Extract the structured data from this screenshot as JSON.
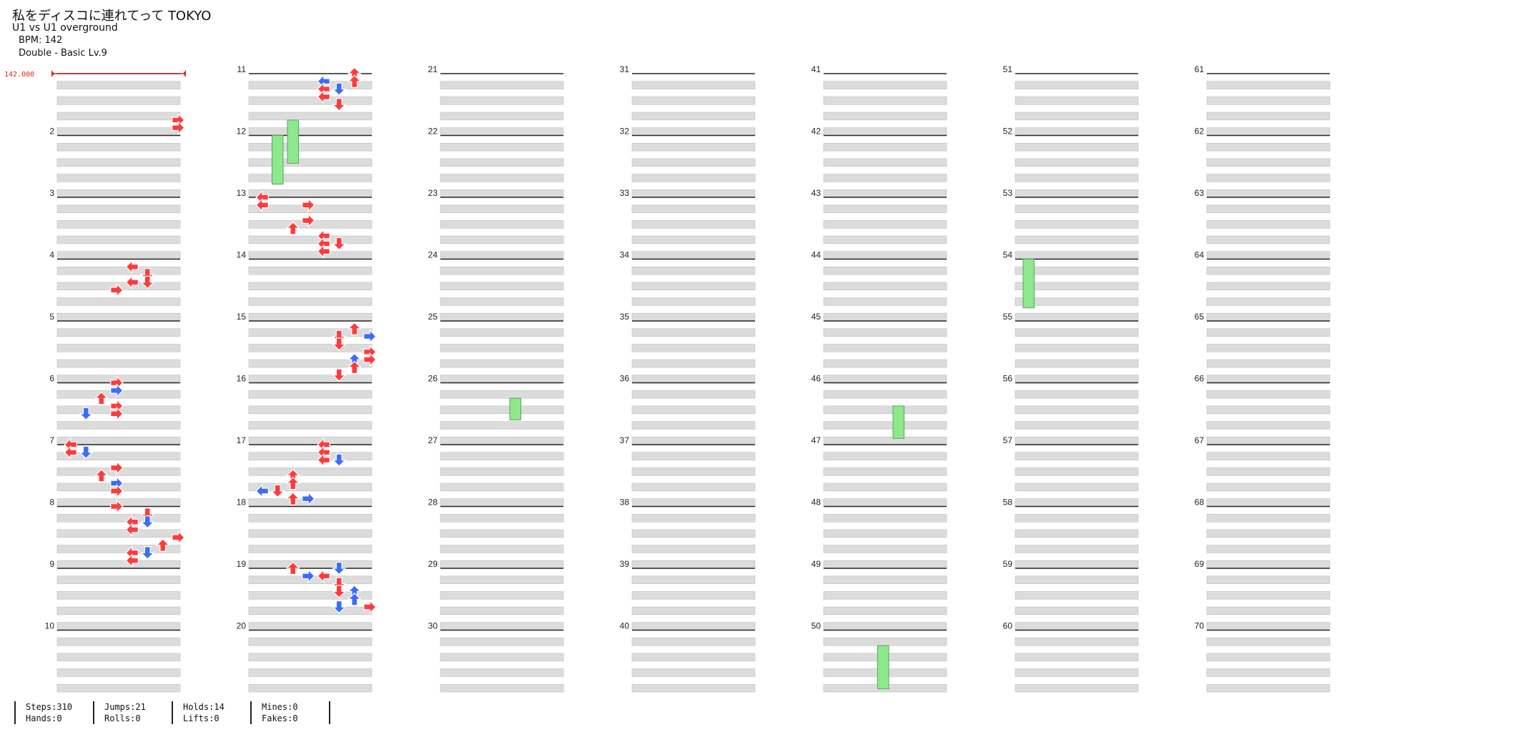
{
  "song": {
    "title": "私をディスコに連れてって TOKYO",
    "subtitle": "U1 vs U1 overground",
    "bpm_label": "BPM: 142",
    "difficulty_label": "Double - Basic Lv.9"
  },
  "bpm_marker": {
    "value_label": "142.000",
    "color": "#e02020"
  },
  "colors": {
    "red_arrow": "#ff3b3b",
    "blue_arrow": "#3b6bff",
    "hold": "#8ee88e",
    "band": "#dcdcdc",
    "measure_line": "#222222"
  },
  "measures": {
    "first": 1,
    "last": 70,
    "columns": 7,
    "per_column": 10,
    "labels": [
      "2",
      "3",
      "4",
      "5",
      "6",
      "7",
      "8",
      "9",
      "10",
      "11",
      "12",
      "13",
      "14",
      "15",
      "16",
      "17",
      "18",
      "19",
      "20",
      "21",
      "22",
      "23",
      "24",
      "25",
      "26",
      "27",
      "28",
      "29",
      "30",
      "31",
      "32",
      "33",
      "34",
      "35",
      "36",
      "37",
      "38",
      "39",
      "40",
      "41",
      "42",
      "43",
      "44",
      "45",
      "46",
      "47",
      "48",
      "49",
      "50",
      "51",
      "52",
      "53",
      "54",
      "55",
      "56",
      "57",
      "58",
      "59",
      "60",
      "61",
      "62",
      "63",
      "64",
      "65",
      "66",
      "67",
      "68",
      "69",
      "70"
    ]
  },
  "stats": {
    "steps": "Steps:310",
    "hands": "Hands:0",
    "jumps": "Jumps:21",
    "rolls": "Rolls:0",
    "holds": "Holds:14",
    "lifts": "Lifts:0",
    "mines": "Mines:0",
    "fakes": "Fakes:0"
  },
  "notes": {
    "lanes": [
      "L",
      "D",
      "U",
      "R",
      "L",
      "D",
      "U",
      "R"
    ],
    "description_rows": "per measure: list of [beat_row(0-7), lane(0-7), color r|b]",
    "data": {
      "1": [
        [
          6,
          7,
          "r"
        ],
        [
          7,
          7,
          "r"
        ]
      ],
      "4": [
        [
          1,
          4,
          "r"
        ],
        [
          2,
          5,
          "r"
        ],
        [
          3,
          4,
          "r"
        ],
        [
          3,
          5,
          "r"
        ],
        [
          4,
          3,
          "r"
        ]
      ],
      "6": [
        [
          0,
          3,
          "r"
        ],
        [
          1,
          3,
          "b"
        ],
        [
          2,
          2,
          "r"
        ],
        [
          2,
          2,
          "r"
        ],
        [
          3,
          3,
          "r"
        ],
        [
          4,
          1,
          "b"
        ],
        [
          4,
          3,
          "r"
        ]
      ],
      "7": [
        [
          0,
          0,
          "r"
        ],
        [
          1,
          1,
          "b"
        ],
        [
          1,
          0,
          "r"
        ],
        [
          3,
          3,
          "r"
        ],
        [
          4,
          2,
          "r"
        ],
        [
          5,
          3,
          "b"
        ],
        [
          6,
          3,
          "r"
        ]
      ],
      "8": [
        [
          0,
          3,
          "r"
        ],
        [
          1,
          5,
          "r"
        ],
        [
          2,
          4,
          "r"
        ],
        [
          2,
          5,
          "b"
        ],
        [
          3,
          4,
          "r"
        ],
        [
          4,
          7,
          "r"
        ],
        [
          5,
          6,
          "r"
        ],
        [
          6,
          4,
          "r"
        ],
        [
          6,
          5,
          "b"
        ],
        [
          7,
          4,
          "r"
        ]
      ],
      "11": [
        [
          0,
          6,
          "r"
        ],
        [
          1,
          4,
          "b"
        ],
        [
          1,
          6,
          "r"
        ],
        [
          2,
          4,
          "r"
        ],
        [
          2,
          5,
          "b"
        ],
        [
          3,
          4,
          "r"
        ],
        [
          4,
          5,
          "r"
        ]
      ],
      "13": [
        [
          0,
          0,
          "r"
        ],
        [
          1,
          0,
          "r"
        ],
        [
          1,
          3,
          "r"
        ],
        [
          3,
          3,
          "r"
        ],
        [
          4,
          2,
          "r"
        ],
        [
          5,
          4,
          "r"
        ],
        [
          6,
          4,
          "r"
        ],
        [
          6,
          5,
          "r"
        ],
        [
          7,
          4,
          "r"
        ]
      ],
      "15": [
        [
          1,
          6,
          "r"
        ],
        [
          2,
          5,
          "r"
        ],
        [
          2,
          7,
          "b"
        ],
        [
          3,
          5,
          "r"
        ],
        [
          4,
          7,
          "r"
        ],
        [
          5,
          6,
          "b"
        ],
        [
          5,
          7,
          "r"
        ],
        [
          6,
          6,
          "r"
        ],
        [
          7,
          5,
          "r"
        ]
      ],
      "17": [
        [
          0,
          4,
          "r"
        ],
        [
          1,
          4,
          "r"
        ],
        [
          2,
          4,
          "r"
        ],
        [
          2,
          5,
          "b"
        ],
        [
          4,
          2,
          "r"
        ],
        [
          5,
          2,
          "r"
        ],
        [
          6,
          0,
          "b"
        ],
        [
          6,
          1,
          "r"
        ],
        [
          7,
          2,
          "r"
        ],
        [
          7,
          3,
          "b"
        ]
      ],
      "19": [
        [
          0,
          2,
          "r"
        ],
        [
          0,
          5,
          "b"
        ],
        [
          1,
          4,
          "r"
        ],
        [
          1,
          3,
          "b"
        ],
        [
          2,
          5,
          "r"
        ],
        [
          3,
          6,
          "b"
        ],
        [
          3,
          5,
          "r"
        ],
        [
          4,
          6,
          "b"
        ],
        [
          5,
          5,
          "b"
        ],
        [
          5,
          7,
          "r"
        ]
      ]
    }
  }
}
